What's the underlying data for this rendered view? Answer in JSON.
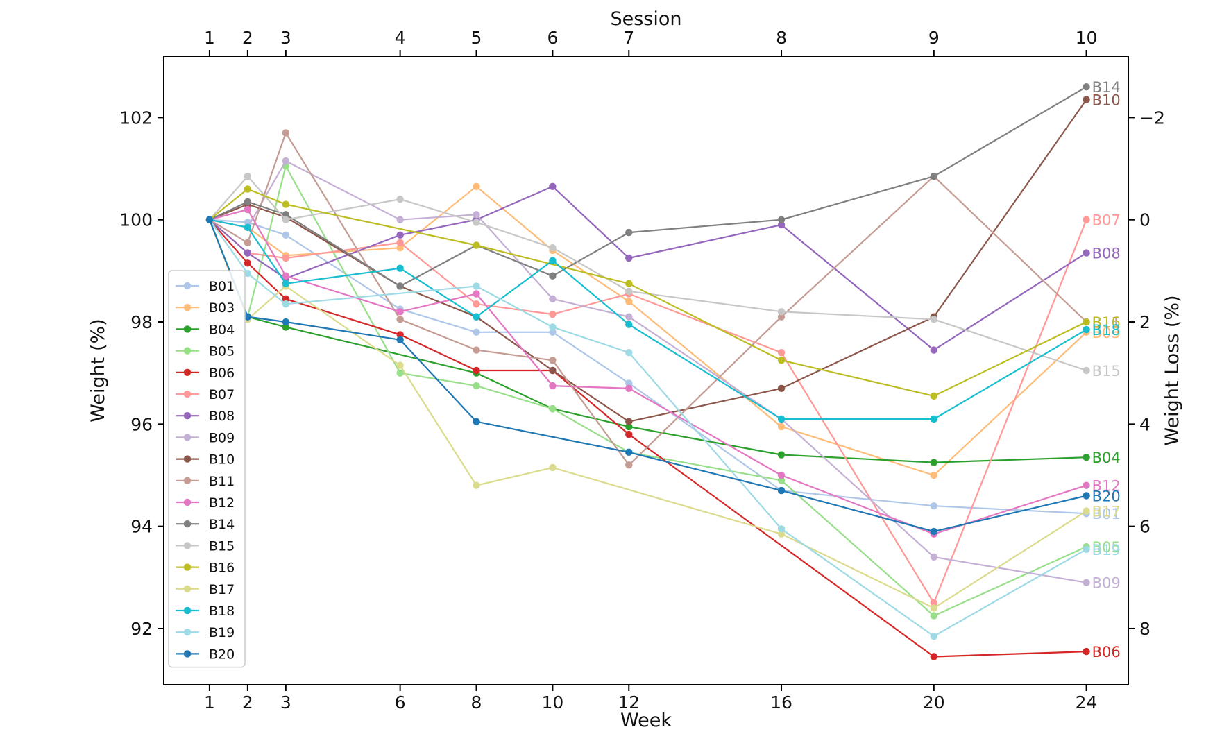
{
  "chart_data": {
    "type": "line",
    "xlabel": "Week",
    "ylabel": "Weight (%)",
    "y2label": "Weight Loss (%)",
    "top_axis_label": "Session",
    "x": [
      1,
      2,
      3,
      6,
      8,
      10,
      12,
      16,
      20,
      24
    ],
    "x_tick_labels": [
      "1",
      "2",
      "3",
      "6",
      "8",
      "10",
      "12",
      "16",
      "20",
      "24"
    ],
    "sessions": [
      "1",
      "2",
      "3",
      "4",
      "5",
      "6",
      "7",
      "8",
      "9",
      "10"
    ],
    "xlim": [
      -0.2,
      25.1
    ],
    "ylim": [
      90.9,
      103.2
    ],
    "yticks": [
      92,
      94,
      96,
      98,
      100,
      102
    ],
    "y2_ticks": [
      "−2",
      "0",
      "2",
      "4",
      "6",
      "8"
    ],
    "grid": false,
    "legend_position": "left",
    "series": [
      {
        "name": "B01",
        "color": "#aec7e8",
        "end_label": "B01",
        "values": [
          100,
          99.95,
          99.7,
          98.25,
          97.8,
          97.8,
          96.8,
          94.7,
          94.4,
          94.25
        ]
      },
      {
        "name": "B03",
        "color": "#ffbb78",
        "end_label": "B03",
        "values": [
          100,
          99.85,
          99.3,
          99.45,
          100.65,
          99.4,
          98.4,
          95.95,
          95.0,
          97.8
        ]
      },
      {
        "name": "B04",
        "color": "#2ca02c",
        "end_label": "B04",
        "values": [
          100,
          98.1,
          97.9,
          null,
          97.0,
          96.3,
          95.95,
          95.4,
          95.25,
          95.35
        ]
      },
      {
        "name": "B05",
        "color": "#98df8a",
        "end_label": "B05",
        "values": [
          100,
          98.1,
          101.05,
          97.0,
          96.75,
          96.3,
          95.45,
          94.9,
          92.25,
          93.6
        ]
      },
      {
        "name": "B06",
        "color": "#d62728",
        "end_label": "B06",
        "values": [
          100,
          99.15,
          98.45,
          97.75,
          97.05,
          97.05,
          95.8,
          null,
          91.45,
          91.55
        ]
      },
      {
        "name": "B07",
        "color": "#ff9896",
        "end_label": "B07",
        "values": [
          100,
          99.35,
          99.25,
          99.55,
          98.35,
          98.15,
          98.55,
          97.4,
          92.5,
          100.0
        ]
      },
      {
        "name": "B08",
        "color": "#9467bd",
        "end_label": "B08",
        "values": [
          100,
          99.35,
          98.85,
          99.7,
          100.0,
          100.65,
          99.25,
          99.9,
          97.45,
          99.35
        ]
      },
      {
        "name": "B09",
        "color": "#c5b0d5",
        "end_label": "B09",
        "values": [
          100,
          99.85,
          101.15,
          100.0,
          100.1,
          98.45,
          98.1,
          96.1,
          93.4,
          92.9
        ]
      },
      {
        "name": "B10",
        "color": "#8c564b",
        "end_label": "B10",
        "values": [
          100,
          100.3,
          100.05,
          98.7,
          98.1,
          97.05,
          96.05,
          96.7,
          98.1,
          102.35
        ]
      },
      {
        "name": "B11",
        "color": "#c49c94",
        "end_label": "B11",
        "values": [
          100,
          99.55,
          101.7,
          98.05,
          97.45,
          97.25,
          95.2,
          98.1,
          100.85,
          98.0
        ]
      },
      {
        "name": "B12",
        "color": "#e377c2",
        "end_label": "B12",
        "values": [
          100,
          100.2,
          98.9,
          98.2,
          98.55,
          96.75,
          96.7,
          95.0,
          93.85,
          94.8
        ]
      },
      {
        "name": "B14",
        "color": "#7f7f7f",
        "end_label": "B14",
        "values": [
          100,
          100.35,
          100.1,
          98.7,
          99.5,
          98.9,
          99.75,
          100.0,
          100.85,
          102.6
        ]
      },
      {
        "name": "B15",
        "color": "#c7c7c7",
        "end_label": "B15",
        "values": [
          100,
          100.85,
          100.0,
          100.4,
          99.95,
          99.45,
          98.6,
          98.2,
          98.05,
          97.05
        ]
      },
      {
        "name": "B16",
        "color": "#bcbd22",
        "end_label": "B16",
        "values": [
          100,
          100.6,
          100.3,
          null,
          99.5,
          null,
          98.75,
          97.25,
          96.55,
          98.0
        ]
      },
      {
        "name": "B17",
        "color": "#dbdb8d",
        "end_label": "B17",
        "values": [
          100,
          98.05,
          98.7,
          97.15,
          94.8,
          95.15,
          null,
          93.85,
          92.4,
          94.3
        ]
      },
      {
        "name": "B18",
        "color": "#17becf",
        "end_label": "B18",
        "values": [
          100,
          99.85,
          98.75,
          99.05,
          98.1,
          99.2,
          97.95,
          96.1,
          96.1,
          97.85
        ]
      },
      {
        "name": "B19",
        "color": "#9edae5",
        "end_label": "B19",
        "values": [
          100,
          98.95,
          98.35,
          null,
          98.7,
          97.9,
          97.4,
          93.95,
          91.85,
          93.55
        ]
      },
      {
        "name": "B20",
        "color": "#1f77b4",
        "end_label": "B20",
        "values": [
          100,
          98.1,
          98.0,
          97.65,
          96.05,
          null,
          95.45,
          94.7,
          93.9,
          94.6
        ]
      }
    ]
  }
}
